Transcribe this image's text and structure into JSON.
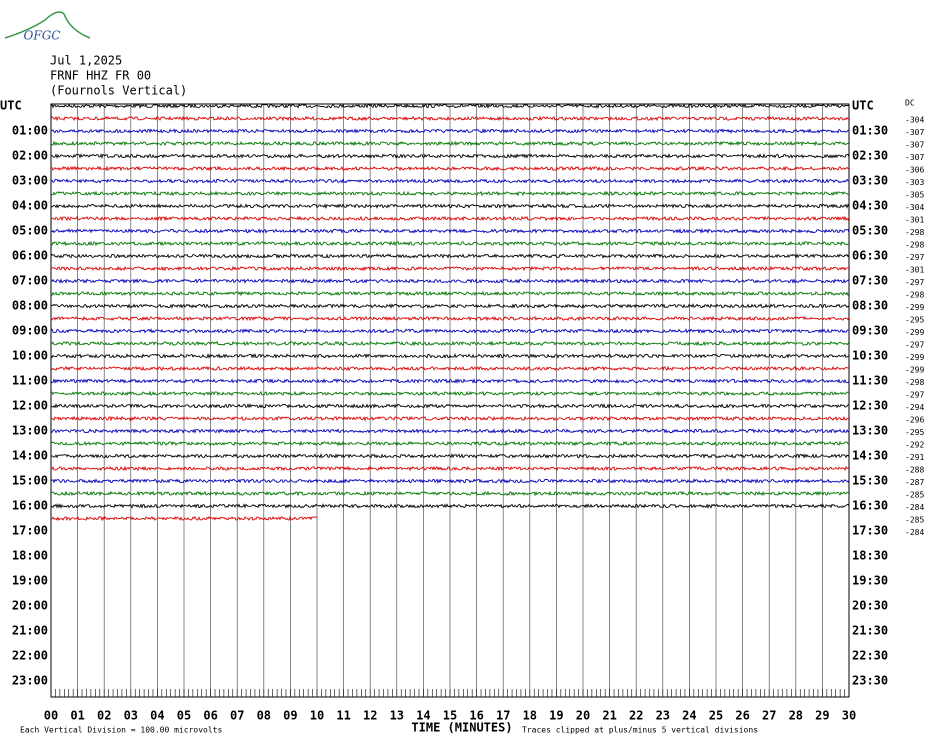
{
  "logo": "OFGC",
  "header": {
    "date": "Jul 1,2025",
    "station": "FRNF HHZ FR 00",
    "location": "(Fournols Vertical)"
  },
  "left_labels": [
    "UTC",
    "01:00",
    "02:00",
    "03:00",
    "04:00",
    "05:00",
    "06:00",
    "07:00",
    "08:00",
    "09:00",
    "10:00",
    "11:00",
    "12:00",
    "13:00",
    "14:00",
    "15:00",
    "16:00",
    "17:00",
    "18:00",
    "19:00",
    "20:00",
    "21:00",
    "22:00",
    "23:00"
  ],
  "right_labels": [
    "UTC",
    "01:30",
    "02:30",
    "03:30",
    "04:30",
    "05:30",
    "06:30",
    "07:30",
    "08:30",
    "09:30",
    "10:30",
    "11:30",
    "12:30",
    "13:30",
    "14:30",
    "15:30",
    "16:30",
    "17:30",
    "18:30",
    "19:30",
    "20:30",
    "21:30",
    "22:30",
    "23:30"
  ],
  "dc_label": "DC",
  "dc_offsets": [
    "-304",
    "-307",
    "-307",
    "-307",
    "-306",
    "-303",
    "-305",
    "-304",
    "-301",
    "-298",
    "-298",
    "-297",
    "-301",
    "-297",
    "-298",
    "-299",
    "-295",
    "-299",
    "-297",
    "-299",
    "-299",
    "-298",
    "-297",
    "-294",
    "-296",
    "-295",
    "-292",
    "-291",
    "-288",
    "-287",
    "-285",
    "-284",
    "-285",
    "-284"
  ],
  "x_labels": [
    "00",
    "01",
    "02",
    "03",
    "04",
    "05",
    "06",
    "07",
    "08",
    "09",
    "10",
    "11",
    "12",
    "13",
    "14",
    "15",
    "16",
    "17",
    "18",
    "19",
    "20",
    "21",
    "22",
    "23",
    "24",
    "25",
    "26",
    "27",
    "28",
    "29",
    "30"
  ],
  "footer": {
    "scale": "Each Vertical Division =  100.00 microvolts",
    "x_title": "TIME (MINUTES)",
    "clip_note": "Traces clipped at plus/minus 5 vertical divisions"
  }
}
